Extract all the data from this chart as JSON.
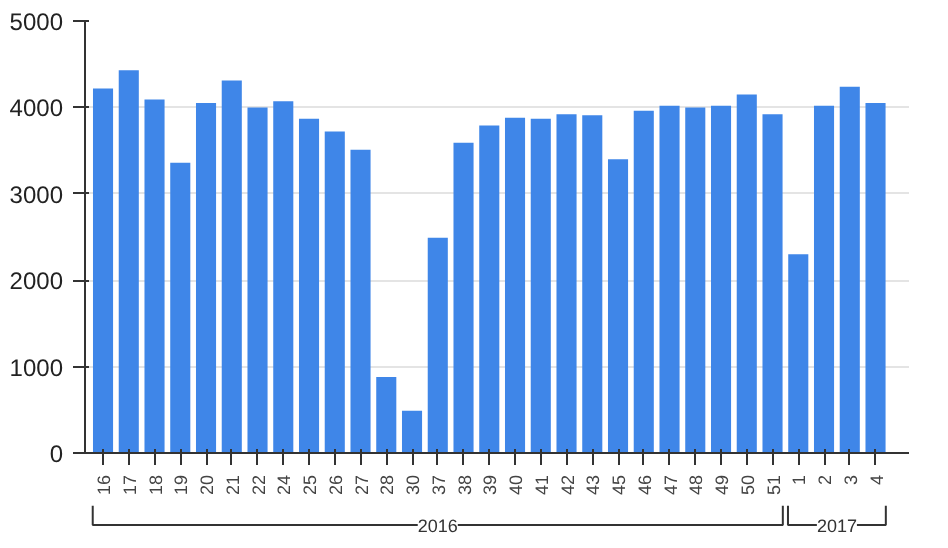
{
  "chart_data": {
    "type": "bar",
    "categories": [
      "16",
      "17",
      "18",
      "19",
      "20",
      "21",
      "22",
      "24",
      "25",
      "26",
      "27",
      "28",
      "30",
      "37",
      "38",
      "39",
      "40",
      "41",
      "42",
      "43",
      "45",
      "46",
      "47",
      "48",
      "49",
      "50",
      "51",
      "1",
      "2",
      "3",
      "4"
    ],
    "values": [
      4220,
      4430,
      4090,
      3360,
      4050,
      4310,
      4000,
      4070,
      3870,
      3720,
      3510,
      880,
      490,
      2490,
      3590,
      3790,
      3880,
      3870,
      3920,
      3910,
      3400,
      3960,
      4020,
      4000,
      4020,
      4150,
      3920,
      2300,
      4020,
      4240,
      4050
    ],
    "color": "#3f86e8",
    "ylim": [
      0,
      5000
    ],
    "yticks": [
      0,
      1000,
      2000,
      3000,
      4000,
      5000
    ],
    "grid": "y",
    "annotations": [
      "2016",
      "2017"
    ]
  }
}
